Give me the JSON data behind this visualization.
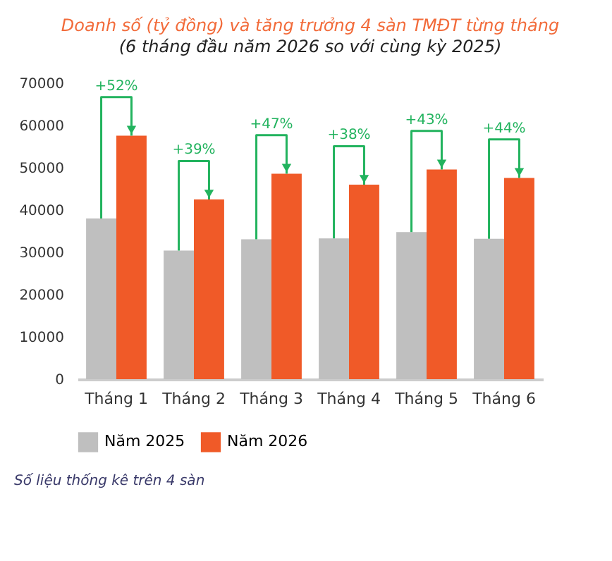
{
  "chart_data": {
    "type": "bar",
    "title": "Doanh số (tỷ đồng) và tăng trưởng 4 sàn TMĐT từng tháng",
    "subtitle": "(6 tháng đầu năm 2026 so với cùng kỳ 2025)",
    "categories": [
      "Tháng 1",
      "Tháng 2",
      "Tháng 3",
      "Tháng 4",
      "Tháng 5",
      "Tháng 6"
    ],
    "series": [
      {
        "name": "Năm 2025",
        "color": "#bfbfbf",
        "values": [
          38000,
          30400,
          33100,
          33300,
          34800,
          33200
        ]
      },
      {
        "name": "Năm 2026",
        "color": "#f05a28",
        "values": [
          57600,
          42500,
          48600,
          46000,
          49600,
          47600
        ]
      }
    ],
    "ylim": [
      0,
      70000
    ],
    "yticks": [
      0,
      10000,
      20000,
      30000,
      40000,
      50000,
      60000,
      70000
    ],
    "grid": false,
    "legend": "bottom",
    "annotations": [
      "+52%",
      "+39%",
      "+47%",
      "+38%",
      "+43%",
      "+44%",
      "Số liệu thống kê trên 4 sàn"
    ]
  }
}
